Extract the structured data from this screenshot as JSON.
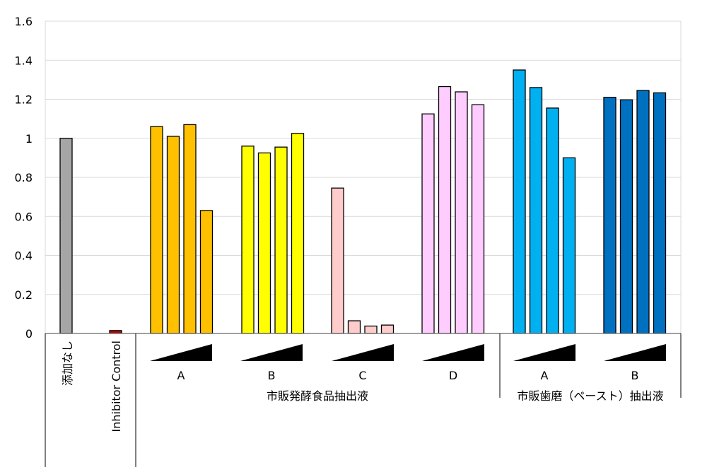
{
  "chart_data": {
    "type": "bar",
    "ylim": [
      0,
      1.6
    ],
    "yticks": [
      "0",
      "0.2",
      "0.4",
      "0.6",
      "0.8",
      "1",
      "1.2",
      "1.4",
      "1.6"
    ],
    "grid": true,
    "groups": [
      {
        "label": "添加なし",
        "color": "#A6A6A6",
        "values": [
          1.0
        ]
      },
      {
        "label": "Inhibitor Control",
        "color": "#C00000",
        "values": [
          0.015
        ]
      },
      {
        "label": "A",
        "color": "#FFC000",
        "values": [
          1.06,
          1.01,
          1.07,
          0.63
        ]
      },
      {
        "label": "B",
        "color": "#FFFF00",
        "values": [
          0.96,
          0.925,
          0.955,
          1.025
        ]
      },
      {
        "label": "C",
        "color": "#FFCCCC",
        "values": [
          0.745,
          0.065,
          0.038,
          0.043
        ]
      },
      {
        "label": "D",
        "color": "#FFCCFF",
        "values": [
          1.125,
          1.265,
          1.238,
          1.172
        ]
      },
      {
        "label": "A",
        "color": "#00B0F0",
        "values": [
          1.35,
          1.26,
          1.155,
          0.9
        ]
      },
      {
        "label": "B",
        "color": "#0070C0",
        "values": [
          1.21,
          1.197,
          1.245,
          1.233
        ]
      }
    ],
    "category_labels": [
      "市販発酵食品抽出液",
      "市販歯磨（ペースト）抽出液"
    ]
  }
}
